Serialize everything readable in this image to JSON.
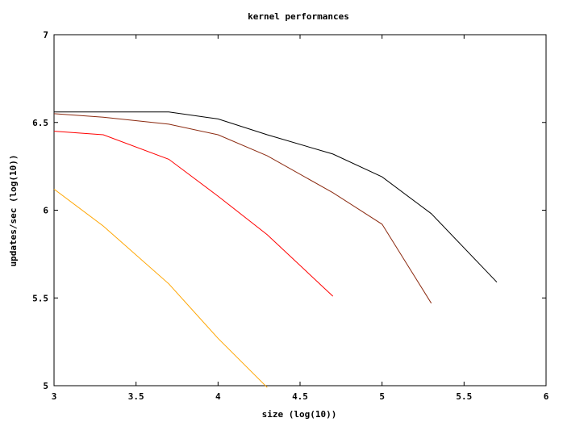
{
  "chart_data": {
    "type": "line",
    "title": "kernel performances",
    "xlabel": "size (log(10))",
    "ylabel": "updates/sec (log(10))",
    "xlim": [
      3,
      6
    ],
    "ylim": [
      5,
      7
    ],
    "x_ticks": [
      "3",
      "3.5",
      "4",
      "4.5",
      "5",
      "5.5",
      "6"
    ],
    "y_ticks": [
      "5",
      "5.5",
      "6",
      "6.5",
      "7"
    ],
    "grid": false,
    "legend": "none",
    "series": [
      {
        "color": "#000000",
        "x": [
          3.0,
          3.3,
          3.7,
          4.0,
          4.3,
          4.7,
          5.0,
          5.3,
          5.7
        ],
        "y": [
          6.56,
          6.56,
          6.56,
          6.52,
          6.43,
          6.32,
          6.19,
          5.98,
          5.59
        ]
      },
      {
        "color": "#8b2a10",
        "x": [
          3.0,
          3.3,
          3.7,
          4.0,
          4.3,
          4.7,
          5.0,
          5.3
        ],
        "y": [
          6.55,
          6.53,
          6.49,
          6.43,
          6.31,
          6.1,
          5.92,
          5.47
        ]
      },
      {
        "color": "#ff0000",
        "x": [
          3.0,
          3.3,
          3.7,
          4.0,
          4.3,
          4.7
        ],
        "y": [
          6.45,
          6.43,
          6.29,
          6.08,
          5.86,
          5.51
        ]
      },
      {
        "color": "#ffa500",
        "x": [
          3.0,
          3.3,
          3.7,
          4.0,
          4.3
        ],
        "y": [
          6.12,
          5.91,
          5.58,
          5.27,
          4.99
        ]
      }
    ]
  }
}
